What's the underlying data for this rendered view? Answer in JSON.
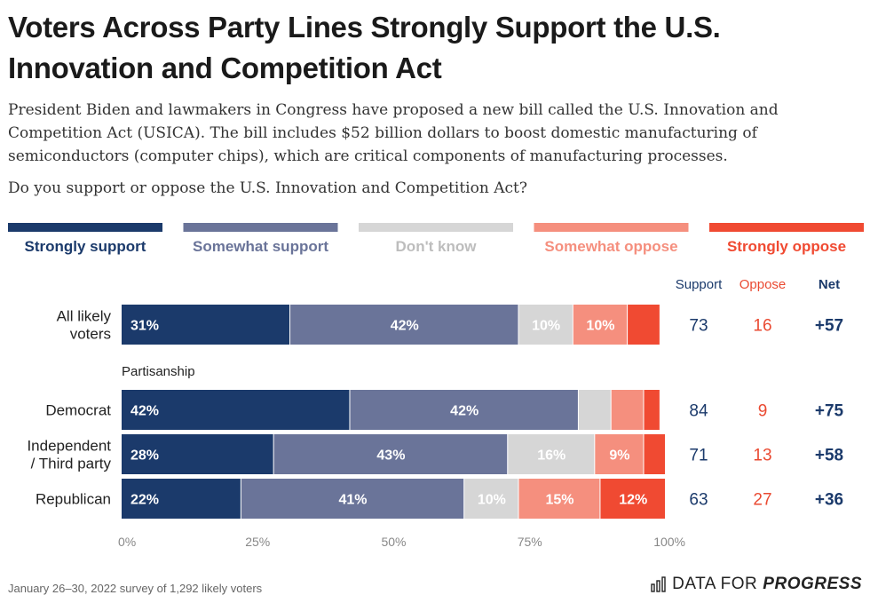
{
  "header": {
    "title": "Voters Across Party Lines Strongly Support the U.S. Innovation and Competition Act",
    "subtitle": "President Biden and lawmakers in Congress have proposed a new bill called the U.S. Innovation and Competition Act (USICA). The bill includes $52 billion dollars to boost domestic manufacturing of semiconductors (computer chips), which are critical components of manufacturing processes.",
    "question": "Do you support or oppose the U.S. Innovation and Competition Act?"
  },
  "footer": {
    "note": "January 26–30, 2022 survey of 1,292 likely voters",
    "brand_prefix": "DATA FOR",
    "brand_suffix": "PROGRESS"
  },
  "colors": {
    "strongly_support": "#1b3a6b",
    "somewhat_support": "#6a7499",
    "dont_know": "#d6d6d6",
    "somewhat_oppose": "#f58f7e",
    "strongly_oppose": "#f04a32",
    "support_text": "#1b3a6b",
    "oppose_text": "#ea4a32"
  },
  "chart_data": {
    "type": "bar",
    "orientation": "horizontal",
    "stacked": true,
    "series": [
      {
        "name": "Strongly support",
        "values": [
          31,
          42,
          28,
          22
        ]
      },
      {
        "name": "Somewhat support",
        "values": [
          42,
          42,
          43,
          41
        ]
      },
      {
        "name": "Don't know",
        "values": [
          10,
          6,
          16,
          10
        ]
      },
      {
        "name": "Somewhat oppose",
        "values": [
          10,
          6,
          9,
          15
        ]
      },
      {
        "name": "Strongly oppose",
        "values": [
          6,
          3,
          4,
          12
        ]
      }
    ],
    "categories": [
      "All likely voters",
      "Democrat",
      "Independent / Third party",
      "Republican"
    ],
    "groups": [
      {
        "label": "Partisanship",
        "before_index": 1
      }
    ],
    "value_labels": [
      [
        "31%",
        "42%",
        "10%",
        "10%",
        ""
      ],
      [
        "42%",
        "42%",
        "",
        "",
        ""
      ],
      [
        "28%",
        "43%",
        "16%",
        "9%",
        ""
      ],
      [
        "22%",
        "41%",
        "10%",
        "15%",
        "12%"
      ]
    ],
    "summary_columns": [
      "Support",
      "Oppose",
      "Net"
    ],
    "summary": [
      [
        "73",
        "16",
        "+57"
      ],
      [
        "84",
        "9",
        "+75"
      ],
      [
        "71",
        "13",
        "+58"
      ],
      [
        "63",
        "27",
        "+36"
      ]
    ],
    "xticks": [
      "0%",
      "25%",
      "50%",
      "75%",
      "100%"
    ],
    "xlim": [
      0,
      100
    ],
    "legend_position": "top"
  }
}
